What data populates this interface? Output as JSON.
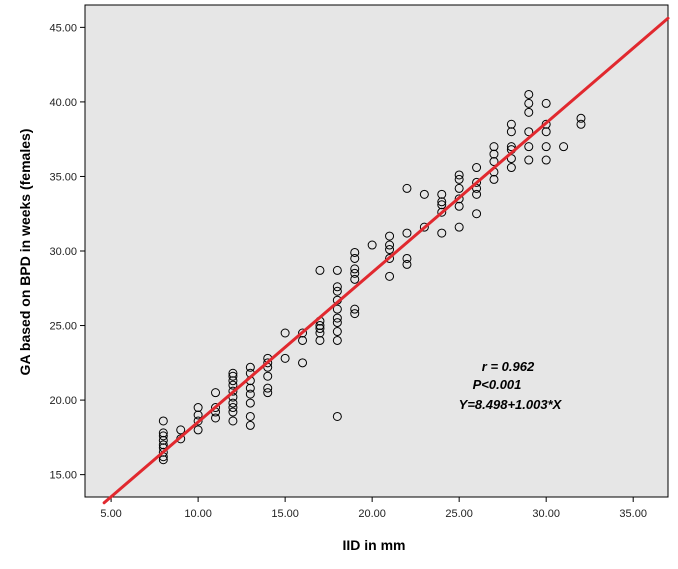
{
  "chart_data": {
    "type": "scatter",
    "xlabel": "IID in mm",
    "ylabel": "GA based on BPD in weeks (females)",
    "xlim": [
      3.5,
      37
    ],
    "ylim": [
      13.5,
      46.5
    ],
    "x_ticks": [
      "5.00",
      "10.00",
      "15.00",
      "20.00",
      "25.00",
      "30.00",
      "35.00"
    ],
    "y_ticks": [
      "15.00",
      "20.00",
      "25.00",
      "30.00",
      "35.00",
      "40.00",
      "45.00"
    ],
    "grid": false,
    "plot_background": "#e6e6e6",
    "marker_color": "#000000",
    "line_color": "#e1292f",
    "annotations": [
      "r = 0.962",
      "P<0.001",
      "Y=8.498+1.003*X"
    ],
    "regression": {
      "intercept": 8.498,
      "slope": 1.003,
      "x_range": [
        4.6,
        37
      ]
    },
    "points": [
      [
        8,
        16.0
      ],
      [
        8,
        16.2
      ],
      [
        8,
        16.5
      ],
      [
        8,
        16.8
      ],
      [
        8,
        17.0
      ],
      [
        8,
        17.3
      ],
      [
        8,
        17.6
      ],
      [
        8,
        17.8
      ],
      [
        8,
        18.6
      ],
      [
        9,
        17.4
      ],
      [
        9,
        18.0
      ],
      [
        10,
        18.0
      ],
      [
        10,
        18.6
      ],
      [
        10,
        19.0
      ],
      [
        10,
        19.5
      ],
      [
        11,
        18.8
      ],
      [
        11,
        19.2
      ],
      [
        11,
        19.5
      ],
      [
        11,
        20.5
      ],
      [
        12,
        18.6
      ],
      [
        12,
        19.2
      ],
      [
        12,
        19.5
      ],
      [
        12,
        19.8
      ],
      [
        12,
        20.2
      ],
      [
        12,
        20.6
      ],
      [
        12,
        21.0
      ],
      [
        12,
        21.3
      ],
      [
        12,
        21.6
      ],
      [
        12,
        21.8
      ],
      [
        13,
        18.3
      ],
      [
        13,
        18.9
      ],
      [
        13,
        19.8
      ],
      [
        13,
        20.4
      ],
      [
        13,
        20.8
      ],
      [
        13,
        21.3
      ],
      [
        13,
        21.8
      ],
      [
        13,
        22.2
      ],
      [
        14,
        20.5
      ],
      [
        14,
        20.8
      ],
      [
        14,
        21.6
      ],
      [
        14,
        22.2
      ],
      [
        14,
        22.5
      ],
      [
        14,
        22.8
      ],
      [
        15,
        22.8
      ],
      [
        15,
        24.5
      ],
      [
        16,
        22.5
      ],
      [
        16,
        24.0
      ],
      [
        16,
        24.5
      ],
      [
        17,
        24.0
      ],
      [
        17,
        24.5
      ],
      [
        17,
        24.8
      ],
      [
        17,
        25.0
      ],
      [
        17,
        25.3
      ],
      [
        17,
        28.7
      ],
      [
        18,
        18.9
      ],
      [
        18,
        24.0
      ],
      [
        18,
        24.6
      ],
      [
        18,
        25.2
      ],
      [
        18,
        25.5
      ],
      [
        18,
        26.1
      ],
      [
        18,
        26.7
      ],
      [
        18,
        27.3
      ],
      [
        18,
        27.6
      ],
      [
        18,
        28.7
      ],
      [
        19,
        25.8
      ],
      [
        19,
        26.1
      ],
      [
        19,
        28.1
      ],
      [
        19,
        28.5
      ],
      [
        19,
        28.8
      ],
      [
        19,
        29.5
      ],
      [
        19,
        29.9
      ],
      [
        20,
        30.4
      ],
      [
        21,
        28.3
      ],
      [
        21,
        29.5
      ],
      [
        21,
        30.1
      ],
      [
        21,
        30.4
      ],
      [
        21,
        31.0
      ],
      [
        22,
        29.1
      ],
      [
        22,
        29.5
      ],
      [
        22,
        31.2
      ],
      [
        22,
        34.2
      ],
      [
        23,
        31.6
      ],
      [
        23,
        33.8
      ],
      [
        24,
        31.2
      ],
      [
        24,
        32.6
      ],
      [
        24,
        33.1
      ],
      [
        24,
        33.3
      ],
      [
        24,
        33.8
      ],
      [
        25,
        31.6
      ],
      [
        25,
        33.0
      ],
      [
        25,
        33.5
      ],
      [
        25,
        34.2
      ],
      [
        25,
        34.8
      ],
      [
        25,
        35.1
      ],
      [
        26,
        32.5
      ],
      [
        26,
        33.8
      ],
      [
        26,
        34.2
      ],
      [
        26,
        34.6
      ],
      [
        26,
        35.6
      ],
      [
        27,
        34.8
      ],
      [
        27,
        35.3
      ],
      [
        27,
        36.0
      ],
      [
        27,
        36.5
      ],
      [
        27,
        37.0
      ],
      [
        28,
        35.6
      ],
      [
        28,
        36.2
      ],
      [
        28,
        36.8
      ],
      [
        28,
        37.0
      ],
      [
        28,
        38.0
      ],
      [
        28,
        38.5
      ],
      [
        29,
        36.1
      ],
      [
        29,
        37.0
      ],
      [
        29,
        38.0
      ],
      [
        29,
        39.3
      ],
      [
        29,
        39.9
      ],
      [
        29,
        40.5
      ],
      [
        30,
        36.1
      ],
      [
        30,
        37.0
      ],
      [
        30,
        38.0
      ],
      [
        30,
        38.5
      ],
      [
        30,
        39.9
      ],
      [
        31,
        37.0
      ],
      [
        32,
        38.5
      ],
      [
        32,
        38.9
      ]
    ]
  }
}
